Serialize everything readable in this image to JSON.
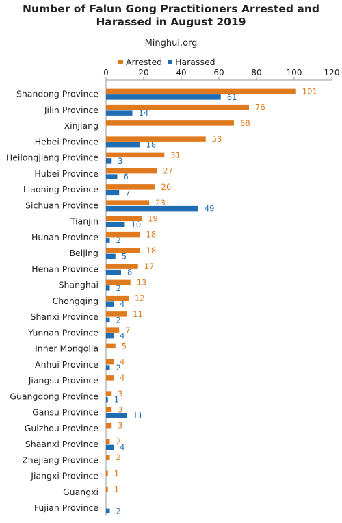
{
  "title_line1": "Number of Falun Gong Practitioners Arrested and",
  "title_line2": "Harassed in August 2019",
  "source": "Minghui.org",
  "colors": {
    "arrested": "#E07A1F",
    "harassed": "#1F6DB3",
    "axis": "#999999",
    "text": "#222222"
  },
  "chart_data": {
    "type": "bar",
    "orientation": "horizontal",
    "legend_position": "top",
    "xlim": [
      0,
      120
    ],
    "xticks": [
      0,
      20,
      40,
      60,
      80,
      100,
      120
    ],
    "grid": false,
    "categories": [
      "Shandong Province",
      "Jilin Province",
      "Xinjiang",
      "Hebei Province",
      "Heilongjiang Province",
      "Hubei Province",
      "Liaoning Province",
      "Sichuan Province",
      "Tianjin",
      "Hunan Province",
      "Beijing",
      "Henan Province",
      "Shanghai",
      "Chongqing",
      "Shanxi Province",
      "Yunnan Province",
      "Inner Mongolia",
      "Anhui Province",
      "Jiangsu Province",
      "Guangdong Province",
      "Gansu Province",
      "Guizhou Province",
      "Shaanxi Province",
      "Zhejiang Province",
      "Jiangxi Province",
      "Guangxi",
      "Fujian Province"
    ],
    "series": [
      {
        "name": "Arrested",
        "values": [
          101,
          76,
          68,
          53,
          31,
          27,
          26,
          23,
          19,
          18,
          18,
          17,
          13,
          12,
          11,
          7,
          5,
          4,
          4,
          3,
          3,
          3,
          2,
          2,
          1,
          1,
          null
        ]
      },
      {
        "name": "Harassed",
        "values": [
          61,
          14,
          null,
          18,
          3,
          6,
          7,
          49,
          10,
          2,
          5,
          8,
          2,
          4,
          2,
          4,
          null,
          2,
          null,
          1,
          11,
          null,
          4,
          null,
          null,
          null,
          2
        ]
      }
    ]
  }
}
